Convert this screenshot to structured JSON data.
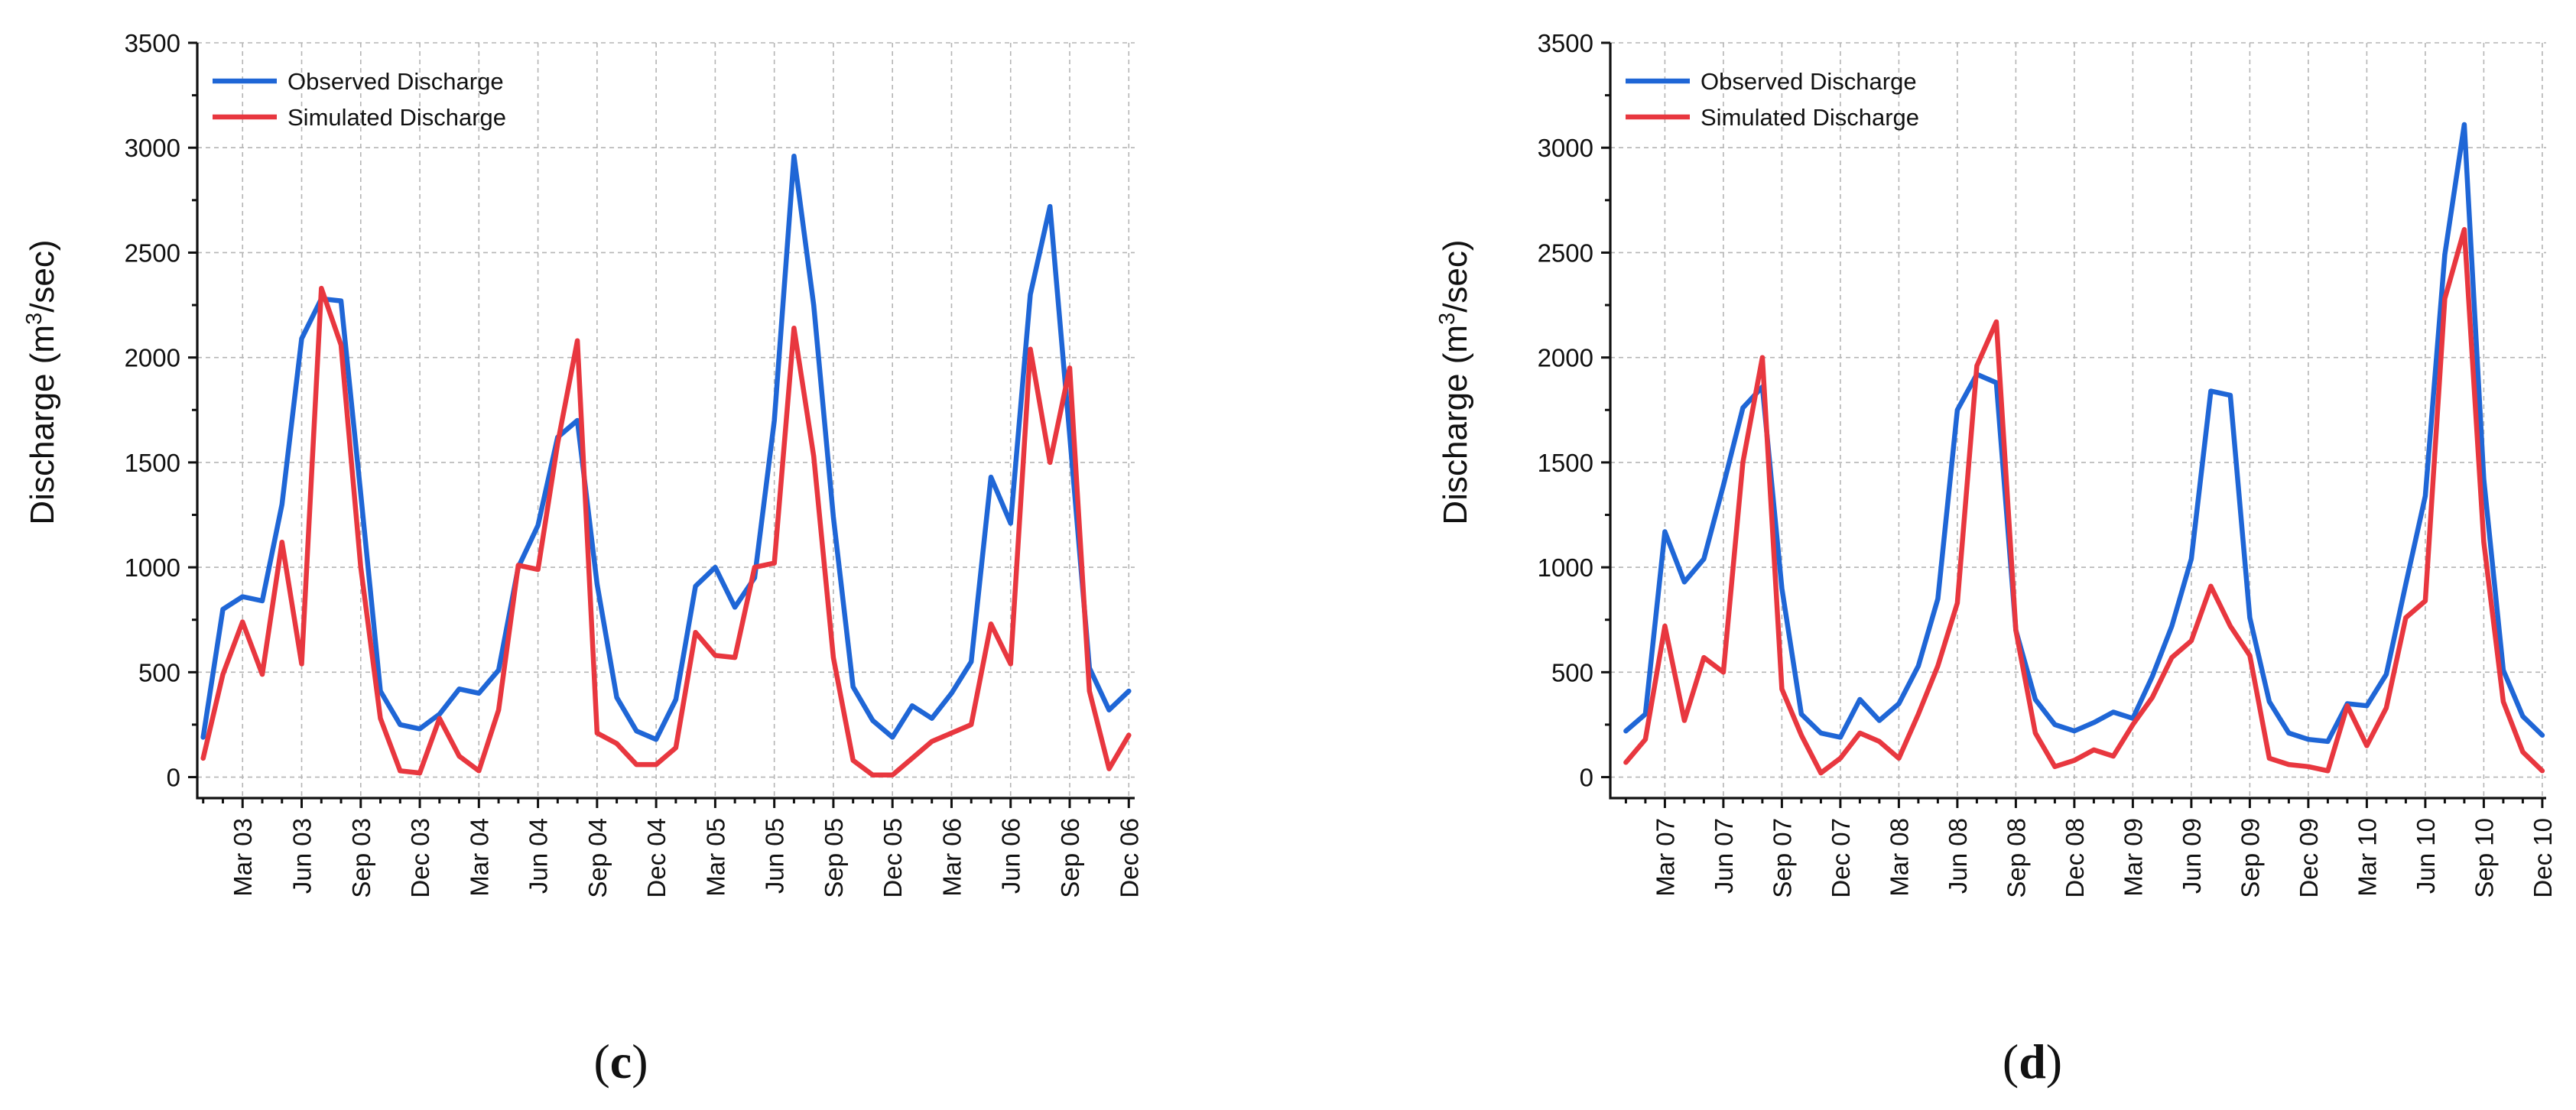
{
  "chart_data": [
    {
      "type": "line",
      "panel_label": "(c)",
      "panel_letter": "c",
      "ylabel_prefix": "Discharge (m",
      "ylabel_sup": "3",
      "ylabel_suffix": "/sec)",
      "ylim": [
        -100,
        3500
      ],
      "yticks": [
        "0",
        "500",
        "1000",
        "1500",
        "2000",
        "2500",
        "3000",
        "3500"
      ],
      "x_index_range": [
        -0.3,
        47.3
      ],
      "xticks": [
        {
          "pos": 2,
          "label": "Mar 03"
        },
        {
          "pos": 5,
          "label": "Jun 03"
        },
        {
          "pos": 8,
          "label": "Sep 03"
        },
        {
          "pos": 11,
          "label": "Dec 03"
        },
        {
          "pos": 14,
          "label": "Mar 04"
        },
        {
          "pos": 17,
          "label": "Jun 04"
        },
        {
          "pos": 20,
          "label": "Sep 04"
        },
        {
          "pos": 23,
          "label": "Dec 04"
        },
        {
          "pos": 26,
          "label": "Mar 05"
        },
        {
          "pos": 29,
          "label": "Jun 05"
        },
        {
          "pos": 32,
          "label": "Sep 05"
        },
        {
          "pos": 35,
          "label": "Dec 05"
        },
        {
          "pos": 38,
          "label": "Mar 06"
        },
        {
          "pos": 41,
          "label": "Jun 06"
        },
        {
          "pos": 44,
          "label": "Sep 06"
        },
        {
          "pos": 47,
          "label": "Dec 06"
        }
      ],
      "legend_position": "top-left",
      "series": [
        {
          "name": "Observed Discharge",
          "color": "#1f66d6",
          "values": [
            190,
            800,
            860,
            840,
            1300,
            2090,
            2280,
            2270,
            1350,
            410,
            250,
            230,
            300,
            420,
            400,
            510,
            1000,
            1200,
            1620,
            1700,
            920,
            380,
            220,
            180,
            370,
            910,
            1000,
            810,
            950,
            1700,
            2960,
            2250,
            1240,
            430,
            270,
            190,
            340,
            280,
            400,
            550,
            1430,
            1210,
            2300,
            2720,
            1630,
            520,
            320,
            410
          ]
        },
        {
          "name": "Simulated Discharge",
          "color": "#e8373f",
          "values": [
            90,
            490,
            740,
            490,
            1120,
            540,
            2330,
            2060,
            1000,
            280,
            30,
            20,
            280,
            100,
            30,
            320,
            1010,
            990,
            1590,
            2080,
            210,
            160,
            60,
            60,
            140,
            690,
            580,
            570,
            1000,
            1020,
            2140,
            1530,
            570,
            80,
            10,
            10,
            90,
            170,
            210,
            250,
            730,
            540,
            2040,
            1500,
            1950,
            410,
            40,
            200
          ]
        }
      ]
    },
    {
      "type": "line",
      "panel_label": "(d)",
      "panel_letter": "d",
      "ylabel_prefix": "Discharge (m",
      "ylabel_sup": "3",
      "ylabel_suffix": "/sec)",
      "ylim": [
        -100,
        3500
      ],
      "yticks": [
        "0",
        "500",
        "1000",
        "1500",
        "2000",
        "2500",
        "3000",
        "3500"
      ],
      "x_index_range": [
        -0.8,
        47.2
      ],
      "xticks": [
        {
          "pos": 2,
          "label": "Mar 07"
        },
        {
          "pos": 5,
          "label": "Jun 07"
        },
        {
          "pos": 8,
          "label": "Sep 07"
        },
        {
          "pos": 11,
          "label": "Dec 07"
        },
        {
          "pos": 14,
          "label": "Mar 08"
        },
        {
          "pos": 17,
          "label": "Jun 08"
        },
        {
          "pos": 20,
          "label": "Sep 08"
        },
        {
          "pos": 23,
          "label": "Dec 08"
        },
        {
          "pos": 26,
          "label": "Mar 09"
        },
        {
          "pos": 29,
          "label": "Jun 09"
        },
        {
          "pos": 32,
          "label": "Sep 09"
        },
        {
          "pos": 35,
          "label": "Dec 09"
        },
        {
          "pos": 38,
          "label": "Mar 10"
        },
        {
          "pos": 41,
          "label": "Jun 10"
        },
        {
          "pos": 44,
          "label": "Sep 10"
        },
        {
          "pos": 47,
          "label": "Dec 10"
        }
      ],
      "legend_position": "top-left",
      "series": [
        {
          "name": "Observed Discharge",
          "color": "#1f66d6",
          "values": [
            220,
            300,
            1170,
            930,
            1040,
            1390,
            1760,
            1860,
            900,
            300,
            210,
            190,
            370,
            270,
            350,
            530,
            850,
            1750,
            1920,
            1880,
            700,
            370,
            250,
            220,
            260,
            310,
            280,
            480,
            720,
            1040,
            1840,
            1820,
            760,
            360,
            210,
            180,
            170,
            350,
            340,
            490,
            920,
            1340,
            2490,
            3110,
            1420,
            510,
            290,
            200
          ]
        },
        {
          "name": "Simulated Discharge",
          "color": "#e8373f",
          "values": [
            70,
            180,
            720,
            270,
            570,
            500,
            1500,
            2000,
            420,
            200,
            20,
            90,
            210,
            170,
            90,
            300,
            530,
            830,
            1960,
            2170,
            700,
            210,
            50,
            80,
            130,
            100,
            250,
            380,
            570,
            650,
            910,
            720,
            580,
            90,
            60,
            50,
            30,
            340,
            150,
            330,
            760,
            840,
            2280,
            2610,
            1120,
            360,
            120,
            30
          ]
        }
      ]
    }
  ]
}
